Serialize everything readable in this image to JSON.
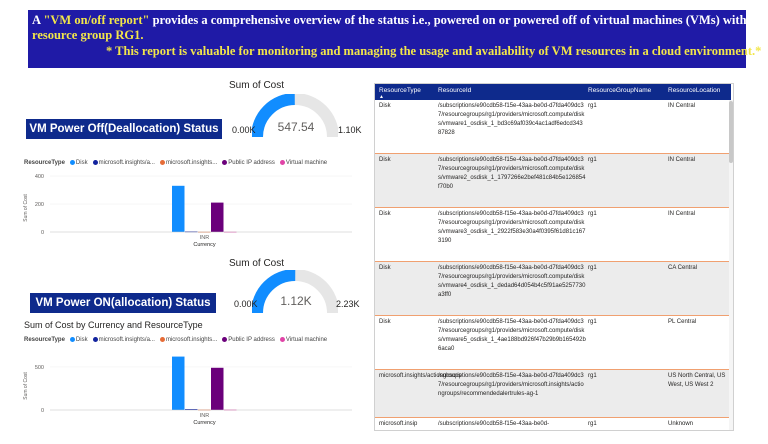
{
  "banner": {
    "part1": "A ",
    "part2": "\"VM on/off report\"",
    "part3": " provides a comprehensive overview of the status i.e., powered on or powered off of virtual machines (VMs) within a",
    "part4": "resource group RG1.",
    "line3": "* This report is valuable for monitoring and managing the usage and availability of VM resources in a cloud environment.*"
  },
  "gauge_off": {
    "title": "Sum of Cost",
    "value": "547.54",
    "min": "0.00K",
    "max": "1.10K",
    "fraction": 0.498
  },
  "gauge_on": {
    "title": "Sum of Cost",
    "value": "1.12K",
    "min": "0.00K",
    "max": "2.23K",
    "fraction": 0.502
  },
  "status_off": "VM Power Off(Deallocation) Status",
  "status_on": "VM Power ON(allocation) Status",
  "legend": {
    "title": "ResourceType",
    "items": [
      {
        "label": "Disk",
        "color": "#118dff"
      },
      {
        "label": "microsoft.insights/a...",
        "color": "#12239e"
      },
      {
        "label": "microsoft.insights...",
        "color": "#e66c37"
      },
      {
        "label": "Public IP address",
        "color": "#6b007b"
      },
      {
        "label": "Virtual machine",
        "color": "#e044a7"
      }
    ]
  },
  "chart_section_title": "Sum of Cost by Currency and ResourceType",
  "chart_data": [
    {
      "type": "bar",
      "categories": [
        "INR"
      ],
      "xlabel": "Currency",
      "ylabel": "Sum of Cost",
      "yticks": [
        "0",
        "200",
        "400"
      ],
      "ylim": [
        0,
        400
      ],
      "series": [
        {
          "name": "Disk",
          "values": [
            330
          ]
        },
        {
          "name": "microsoft.insights/a...",
          "values": [
            4
          ]
        },
        {
          "name": "microsoft.insights...",
          "values": [
            2
          ]
        },
        {
          "name": "Public IP address",
          "values": [
            210
          ]
        },
        {
          "name": "Virtual machine",
          "values": [
            2
          ]
        }
      ]
    },
    {
      "type": "bar",
      "categories": [
        "INR"
      ],
      "xlabel": "Currency",
      "ylabel": "Sum of Cost",
      "yticks": [
        "0",
        "500"
      ],
      "ylim": [
        0,
        650
      ],
      "series": [
        {
          "name": "Disk",
          "values": [
            620
          ]
        },
        {
          "name": "microsoft.insights/a...",
          "values": [
            10
          ]
        },
        {
          "name": "microsoft.insights...",
          "values": [
            5
          ]
        },
        {
          "name": "Public IP address",
          "values": [
            490
          ]
        },
        {
          "name": "Virtual machine",
          "values": [
            5
          ]
        }
      ]
    }
  ],
  "table": {
    "columns": [
      "ResourceType",
      "ResourceId",
      "ResourceGroupName",
      "ResourceLocation"
    ],
    "rows": [
      {
        "type": "Disk",
        "id": "/subscriptions/e90cdb58-f15e-43aa-be0d-d7fda409dc37/resourcegroups/rg1/providers/microsoft.compute/disks/vmware1_osdisk_1_bd3c69af039c4ac1adf6edcd34387828",
        "group": "rg1",
        "location": "IN Central"
      },
      {
        "type": "Disk",
        "id": "/subscriptions/e90cdb58-f15e-43aa-be0d-d7fda409dc37/resourcegroups/rg1/providers/microsoft.compute/disks/vmware2_osdisk_1_1797266e2bef481c84b5e126854f70b0",
        "group": "rg1",
        "location": "IN Central"
      },
      {
        "type": "Disk",
        "id": "/subscriptions/e90cdb58-f15e-43aa-be0d-d7fda409dc37/resourcegroups/rg1/providers/microsoft.compute/disks/vmware3_osdisk_1_2922f583e30a4f0395f61d81c1673190",
        "group": "rg1",
        "location": "IN Central"
      },
      {
        "type": "Disk",
        "id": "/subscriptions/e90cdb58-f15e-43aa-be0d-d7fda409dc37/resourcegroups/rg1/providers/microsoft.compute/disks/vmware4_osdisk_1_dedad64d054b4c5f91ae5257730a3ff0",
        "group": "rg1",
        "location": "CA Central"
      },
      {
        "type": "Disk",
        "id": "/subscriptions/e90cdb58-f15e-43aa-be0d-d7fda409dc37/resourcegroups/rg1/providers/microsoft.compute/disks/vmware5_osdisk_1_4ae188bd926f47b29b9b165492b6aca0",
        "group": "rg1",
        "location": "PL Central"
      },
      {
        "type": "microsoft.insights/actiongroups",
        "id": "/subscriptions/e90cdb58-f15e-43aa-be0d-d7fda409dc37/resourcegroups/rg1/providers/microsoft.insights/actiongroups/recommendedalertrules-ag-1",
        "group": "rg1",
        "location": "US North Central, US West, US West 2"
      },
      {
        "type": "microsoft.insip",
        "id": "/subscriptions/e90cdb58-f15e-43aa-be0d-",
        "group": "rg1",
        "location": "Unknown"
      }
    ]
  }
}
